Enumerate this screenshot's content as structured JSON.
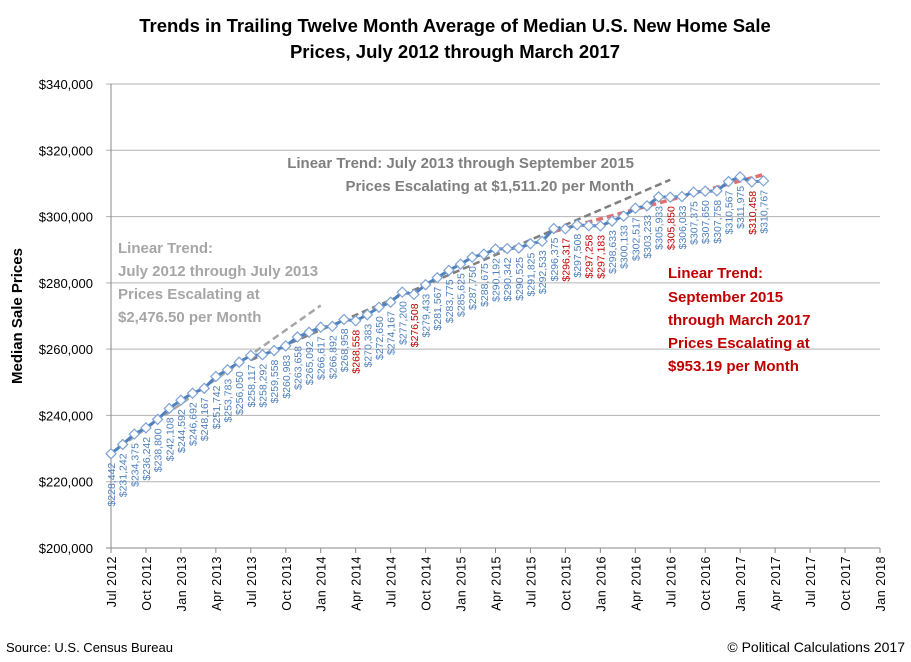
{
  "chart_data": {
    "type": "line",
    "title": [
      "Trends in Trailing Twelve Month Average of Median U.S. New Home Sale",
      "Prices, July 2012 through March 2017"
    ],
    "ylabel": "Median Sale Prices",
    "xlabel": "",
    "ylim": [
      200000,
      340000
    ],
    "yticks": [
      "$200,000",
      "$220,000",
      "$240,000",
      "$260,000",
      "$280,000",
      "$300,000",
      "$320,000",
      "$340,000"
    ],
    "xticks": [
      "Jul 2012",
      "Oct 2012",
      "Jan 2013",
      "Apr 2013",
      "Jul 2013",
      "Oct 2013",
      "Jan 2014",
      "Apr 2014",
      "Jul 2014",
      "Oct 2014",
      "Jan 2015",
      "Apr 2015",
      "Jul 2015",
      "Oct 2015",
      "Jan 2016",
      "Apr 2016",
      "Jul 2016",
      "Oct 2016",
      "Jan 2017",
      "Apr 2017",
      "Jul 2017",
      "Oct 2017",
      "Jan 2018"
    ],
    "xlim": [
      "Jul 2012",
      "Jan 2018"
    ],
    "grid": "horizontal",
    "series": [
      {
        "start": "Jul 2012",
        "frequency": "monthly",
        "color": "#4f81bd",
        "marker": "diamond",
        "values": [
          228442,
          231242,
          234375,
          236242,
          238800,
          242108,
          244592,
          246692,
          248167,
          251742,
          253783,
          256050,
          258117,
          258292,
          259558,
          260983,
          263658,
          265092,
          266617,
          266892,
          268958,
          268558,
          270383,
          272650,
          274167,
          277200,
          276508,
          279433,
          281567,
          283775,
          285625,
          287750,
          288675,
          290192,
          290342,
          290525,
          291825,
          292533,
          296375,
          296317,
          297508,
          297258,
          297183,
          298633,
          300133,
          302517,
          303233,
          305933,
          305850,
          306033,
          307375,
          307650,
          307758,
          310567,
          311975,
          310458,
          310767
        ],
        "labels": [
          "$228,442",
          "$231,242",
          "$234,375",
          "$236,242",
          "$238,800",
          "$242,108",
          "$244,592",
          "$246,692",
          "$248,167",
          "$251,742",
          "$253,783",
          "$256,050",
          "$258,117",
          "$258,292",
          "$259,558",
          "$260,983",
          "$263,658",
          "$265,092",
          "$266,617",
          "$266,892",
          "$268,958",
          "$268,558",
          "$270,383",
          "$272,650",
          "$274,167",
          "$277,200",
          "$276,508",
          "$279,433",
          "$281,567",
          "$283,775",
          "$285,625",
          "$287,750",
          "$288,675",
          "$290,192",
          "$290,342",
          "$290,525",
          "$291,825",
          "$292,533",
          "$296,375",
          "$296,317",
          "$297,508",
          "$297,258",
          "$297,183",
          "$298,633",
          "$300,133",
          "$302,517",
          "$303,233",
          "$305,933",
          "$305,850",
          "$306,033",
          "$307,375",
          "$307,650",
          "$307,758",
          "$310,567",
          "$311,975",
          "$310,458",
          "$310,767"
        ],
        "red_label_indices": [
          21,
          26,
          39,
          41,
          42,
          48,
          55
        ],
        "label_color": "#4f81bd",
        "red_label_color": "#c00000"
      }
    ],
    "trendlines": [
      {
        "from": "Jul 2012",
        "to": "Jan 2014",
        "slope_per_month": 2476.5,
        "start_value": 228600,
        "color": "#a6a6a6",
        "style": "dashed"
      },
      {
        "from": "Jul 2013",
        "to": "Jul 2016",
        "slope_per_month": 1511.2,
        "start_value": 256700,
        "color": "#7f7f7f",
        "style": "dashed"
      },
      {
        "from": "Sep 2015",
        "to": "Mar 2017",
        "slope_per_month": 953.19,
        "start_value": 295500,
        "color": "#e07070",
        "style": "dashed"
      }
    ],
    "annotations": {
      "trend2013": [
        "Linear Trend:",
        "July 2012 through July 2013",
        "Prices Escalating at",
        "$2,476.50 per Month"
      ],
      "trend2015": [
        "Linear Trend: July 2013 through September 2015",
        "Prices Escalating at $1,511.20 per Month"
      ],
      "trend2017": [
        "Linear Trend:",
        "September 2015",
        "through March 2017",
        "Prices Escalating at",
        "$953.19 per Month"
      ]
    },
    "annotation_colors": {
      "trend2013": "#a6a6a6",
      "trend2015": "#7f7f7f",
      "trend2017": "#c00000"
    }
  },
  "footer": {
    "source": "Source: U.S. Census Bureau",
    "copyright": "© Political Calculations 2017"
  }
}
